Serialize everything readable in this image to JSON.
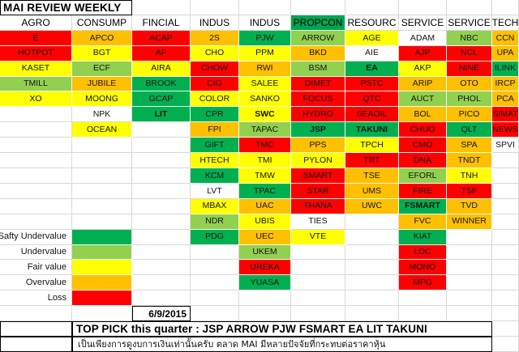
{
  "title": "MAI REVIEW WEEKLY",
  "date": "6/9/2015",
  "top_pick": "TOP PICK this quarter :  JSP ARROW  PJW FSMART EA LIT TAKUNI",
  "disclaimer": "เป็นเพียงการดูงบการเงินเท่านั้นครับ ตลาด MAI มีหลายปัจจัยที่กระทบต่อราคาหุ้น",
  "colors": {
    "g": "#00b050",
    "lg": "#92d050",
    "y": "#ffff00",
    "o": "#ffc000",
    "r": "#ff0000",
    "hg": "#00a551"
  },
  "legend": [
    {
      "label": "Safty Undervalue",
      "color": "g"
    },
    {
      "label": "Undervalue",
      "color": "lg"
    },
    {
      "label": "Fair value",
      "color": "y"
    },
    {
      "label": "Overvalue",
      "color": "o"
    },
    {
      "label": "Loss",
      "color": "r"
    }
  ],
  "columns": [
    {
      "header": "AGRO",
      "cells": [
        [
          "E",
          "r"
        ],
        [
          "HOTPOT",
          "r"
        ],
        [
          "KASET",
          "y"
        ],
        [
          "TMILL",
          "lg"
        ],
        [
          "XO",
          "y"
        ]
      ]
    },
    {
      "header": "CONSUMP",
      "cells": [
        [
          "APCO",
          "o"
        ],
        [
          "BGT",
          "y"
        ],
        [
          "ECF",
          "lg"
        ],
        [
          "JUBILE",
          "o"
        ],
        [
          "MOONG",
          "y"
        ],
        [
          "NPK",
          ""
        ],
        [
          "OCEAN",
          "y"
        ]
      ]
    },
    {
      "header": "FINCIAL",
      "cells": [
        [
          "ACAP",
          "r"
        ],
        [
          "AF",
          "r"
        ],
        [
          "AIRA",
          "y"
        ],
        [
          "BROOK",
          "g"
        ],
        [
          "GCAP",
          "g"
        ],
        [
          "LIT",
          "g",
          "b"
        ]
      ]
    },
    {
      "header": "INDUS",
      "cells": [
        [
          "2S",
          "o"
        ],
        [
          "CHO",
          "y"
        ],
        [
          "CHOW",
          "r"
        ],
        [
          "CIG",
          "r"
        ],
        [
          "COLOR",
          "y"
        ],
        [
          "CPR",
          "g"
        ],
        [
          "FPI",
          "o"
        ],
        [
          "GIFT",
          "g"
        ],
        [
          "HTECH",
          "y"
        ],
        [
          "KCM",
          "g"
        ],
        [
          "LVT",
          ""
        ],
        [
          "MBAX",
          "y"
        ],
        [
          "NDR",
          "lg"
        ],
        [
          "PDG",
          "g"
        ]
      ]
    },
    {
      "header": "INDUS",
      "cells": [
        [
          "PJW",
          "g"
        ],
        [
          "PPM",
          "y"
        ],
        [
          "RWI",
          "o"
        ],
        [
          "SALEE",
          "y"
        ],
        [
          "SANKO",
          "y"
        ],
        [
          "SWC",
          "y",
          "b"
        ],
        [
          "TAPAC",
          "lg"
        ],
        [
          "TMC",
          "r"
        ],
        [
          "TMI",
          "y"
        ],
        [
          "TMW",
          "y"
        ],
        [
          "TPAC",
          "g"
        ],
        [
          "UAC",
          "o"
        ],
        [
          "UBIS",
          "y"
        ],
        [
          "UEC",
          "o"
        ],
        [
          "UKEM",
          "lg"
        ],
        [
          "UREKA",
          "r"
        ],
        [
          "YUASA",
          "g"
        ]
      ]
    },
    {
      "header": "PROPCON",
      "header_bg": "hg",
      "cells": [
        [
          "ARROW",
          "lg"
        ],
        [
          "BKD",
          "o"
        ],
        [
          "BSM",
          "lg"
        ],
        [
          "DIMET",
          "r"
        ],
        [
          "FOCUS",
          "r"
        ],
        [
          "HYDRO",
          "r"
        ],
        [
          "JSP",
          "g",
          "b"
        ],
        [
          "PPS",
          "o"
        ],
        [
          "PYLON",
          "y"
        ],
        [
          "SMART",
          "r"
        ],
        [
          "STAR",
          "r"
        ],
        [
          "THANA",
          "r"
        ],
        [
          "TIES",
          ""
        ],
        [
          "VTE",
          "y"
        ]
      ]
    },
    {
      "header": "RESOURC",
      "cells": [
        [
          "AGE",
          "y"
        ],
        [
          "AIE",
          ""
        ],
        [
          "EA",
          "g",
          "b"
        ],
        [
          "PSTC",
          "r"
        ],
        [
          "QTC",
          "r"
        ],
        [
          "SEAOIL",
          "r"
        ],
        [
          "TAKUNI",
          "g",
          "b"
        ],
        [
          "TPCH",
          "y"
        ],
        [
          "TRT",
          "r"
        ],
        [
          "TSE",
          "o"
        ],
        [
          "UMS",
          "o"
        ],
        [
          "UWC",
          "o"
        ]
      ]
    },
    {
      "header": "SERVICE",
      "cells": [
        [
          "ADAM",
          ""
        ],
        [
          "AJP",
          "r"
        ],
        [
          "AKP",
          "y"
        ],
        [
          "ARIP",
          "o"
        ],
        [
          "AUCT",
          "lg"
        ],
        [
          "BOL",
          "o"
        ],
        [
          "CHUO",
          "r"
        ],
        [
          "CMO",
          "r"
        ],
        [
          "DNA",
          "r"
        ],
        [
          "EFORL",
          "lg"
        ],
        [
          "FIRE",
          "r"
        ],
        [
          "FSMART",
          "g",
          "b"
        ],
        [
          "FVC",
          "o"
        ],
        [
          "KIAT",
          "g"
        ],
        [
          "LDC",
          "r"
        ],
        [
          "MONO",
          "r"
        ],
        [
          "MPG",
          "r"
        ]
      ]
    },
    {
      "header": "SERVICE",
      "cells": [
        [
          "NBC",
          "lg"
        ],
        [
          "NCL",
          "r"
        ],
        [
          "NINE",
          "r"
        ],
        [
          "OTO",
          "o"
        ],
        [
          "PHOL",
          "lg"
        ],
        [
          "PICO",
          "o"
        ],
        [
          "QLT",
          "g"
        ],
        [
          "SPA",
          "o"
        ],
        [
          "TNDT",
          "o"
        ],
        [
          "TNH",
          "y"
        ],
        [
          "TSF",
          "r"
        ],
        [
          "TVD",
          "o"
        ],
        [
          "WINNER",
          "o"
        ]
      ]
    },
    {
      "header": "TECH",
      "cells": [
        [
          "CCN",
          "o"
        ],
        [
          "UPA",
          "o"
        ],
        [
          "ILINK",
          "g"
        ],
        [
          "IRCP",
          "o"
        ],
        [
          "PCA",
          "o"
        ],
        [
          "SIMAT",
          "r"
        ],
        [
          "NEWS",
          "r"
        ],
        [
          "SPVI",
          ""
        ]
      ]
    }
  ]
}
